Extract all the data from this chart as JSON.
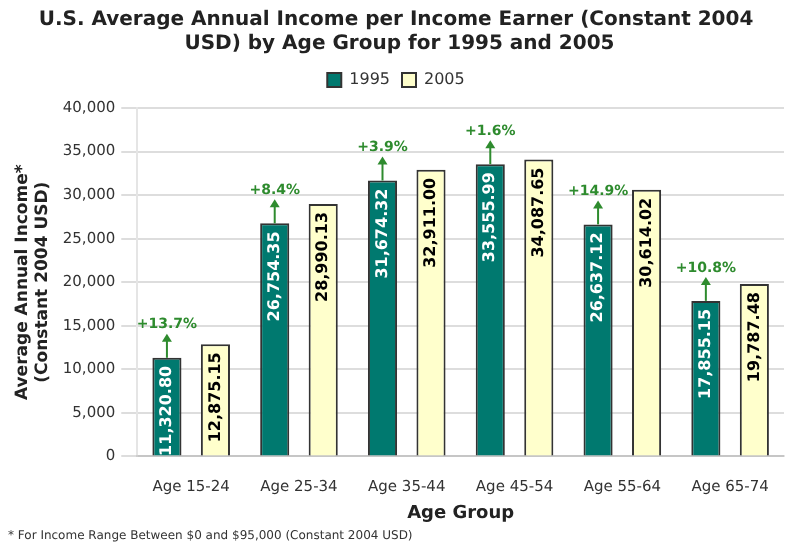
{
  "chart_data": {
    "type": "bar",
    "title": "U.S. Average Annual Income per Income Earner (Constant 2004 USD) by Age Group for 1995 and 2005",
    "xlabel": "Age Group",
    "ylabel": "Average Annual Income*\n(Constant 2004 USD)",
    "categories": [
      "Age 15-24",
      "Age 25-34",
      "Age 35-44",
      "Age 45-54",
      "Age 55-64",
      "Age 65-74"
    ],
    "series": [
      {
        "name": "1995",
        "color": "#00796f",
        "values": [
          11320.8,
          26754.35,
          31674.32,
          33555.99,
          26637.12,
          17855.15
        ],
        "value_labels": [
          "11,320.80",
          "26,754.35",
          "31,674.32",
          "33,555.99",
          "26,637.12",
          "17,855.15"
        ]
      },
      {
        "name": "2005",
        "color": "#ffffcc",
        "values": [
          12875.15,
          28990.13,
          32911.0,
          34087.65,
          30614.02,
          19787.48
        ],
        "value_labels": [
          "12,875.15",
          "28,990.13",
          "32,911.00",
          "34,087.65",
          "30,614.02",
          "19,787.48"
        ]
      }
    ],
    "ylim": [
      0,
      40000
    ],
    "yticks": [
      {
        "value": 0,
        "label": "0"
      },
      {
        "value": 5000,
        "label": "5,000"
      },
      {
        "value": 10000,
        "label": "10,000"
      },
      {
        "value": 15000,
        "label": "15,000"
      },
      {
        "value": 20000,
        "label": "20,000"
      },
      {
        "value": 25000,
        "label": "25,000"
      },
      {
        "value": 30000,
        "label": "30,000"
      },
      {
        "value": 35000,
        "label": "35,000"
      },
      {
        "value": 40000,
        "label": "40,000"
      }
    ],
    "grid": "y",
    "legend": "top",
    "annotations": [
      "+13.7%",
      "+8.4%",
      "+3.9%",
      "+1.6%",
      "+14.9%",
      "+10.8%",
      "* For Income Range Between $0 and $95,000 (Constant 2004 USD)"
    ]
  }
}
